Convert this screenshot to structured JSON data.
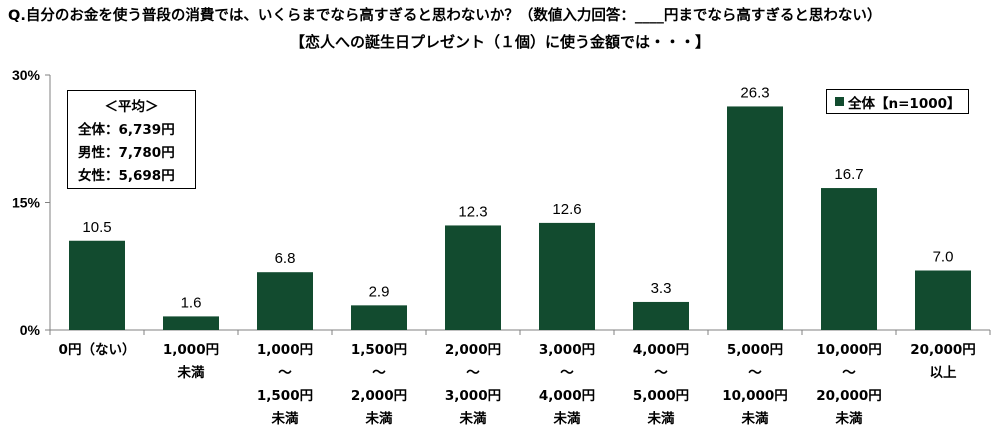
{
  "question": "Q.自分のお金を使う普段の消費では、いくらまでなら高すぎると思わないか？（数値入力回答：____円までなら高すぎると思わない）",
  "subtitle": "【恋人への誕生日プレゼント（１個）に使う金額では・・・】",
  "average_box": {
    "title": "＜平均＞",
    "lines": [
      "全体：6,739円",
      "男性：7,780円",
      "女性：5,698円"
    ]
  },
  "legend": {
    "label": "全体【n=1000】",
    "color": "#124b2f"
  },
  "chart_data": {
    "type": "bar",
    "title": "【恋人への誕生日プレゼント（１個）に使う金額では・・・】",
    "categories": [
      [
        "0円（ない）"
      ],
      [
        "1,000円",
        "未満"
      ],
      [
        "1,000円",
        "～",
        "1,500円",
        "未満"
      ],
      [
        "1,500円",
        "～",
        "2,000円",
        "未満"
      ],
      [
        "2,000円",
        "～",
        "3,000円",
        "未満"
      ],
      [
        "3,000円",
        "～",
        "4,000円",
        "未満"
      ],
      [
        "4,000円",
        "～",
        "5,000円",
        "未満"
      ],
      [
        "5,000円",
        "～",
        "10,000円",
        "未満"
      ],
      [
        "10,000円",
        "～",
        "20,000円",
        "未満"
      ],
      [
        "20,000円",
        "以上"
      ]
    ],
    "series": [
      {
        "name": "全体【n=1000】",
        "values": [
          10.5,
          1.6,
          6.8,
          2.9,
          12.3,
          12.6,
          3.3,
          26.3,
          16.7,
          7.0
        ],
        "color": "#124b2f"
      }
    ],
    "y_ticks": [
      "0%",
      "15%",
      "30%"
    ],
    "ylim": [
      0,
      30
    ],
    "grid": false,
    "legend_position": "top-right",
    "xlabel": "",
    "ylabel": ""
  }
}
